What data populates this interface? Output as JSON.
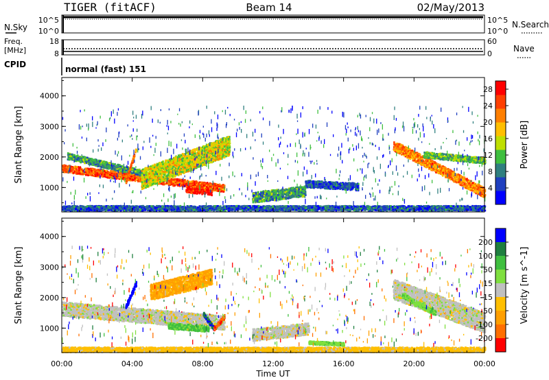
{
  "header": {
    "radar": "TIGER (fitACF)",
    "beam": "Beam 14",
    "date": "02/May/2013"
  },
  "top_panels": {
    "nsky_label": "N.Sky",
    "nsky_ticks": [
      "10^5",
      "10^0"
    ],
    "nsearch_label": "N.Search",
    "nsearch_ticks": [
      "10^5",
      "10^0"
    ],
    "freq_label": "Freq.",
    "freq_unit": "[MHz]",
    "freq_ticks": [
      "18",
      "8"
    ],
    "nave_label": "Nave",
    "nave_ticks": [
      "60",
      "0"
    ],
    "cpid_label": "CPID",
    "cpid_value": "normal (fast) 151"
  },
  "colors": {
    "power": [
      "#0000ff",
      "#1f3fbf",
      "#2f7f7f",
      "#3fbf3f",
      "#bfdf00",
      "#ffbf00",
      "#ff7f00",
      "#ff3f00",
      "#ff0000"
    ],
    "velocity": [
      "#0000ff",
      "#1f7f3f",
      "#3fbf3f",
      "#7fdf3f",
      "#c0c0c0",
      "#ffbf00",
      "#ff9f00",
      "#ff6f00",
      "#ff0000"
    ]
  },
  "chart_data": [
    {
      "type": "heatmap",
      "title": "Power",
      "xlabel": "",
      "ylabel": "Slant Range [km]",
      "xlim": [
        0,
        24
      ],
      "ylim": [
        200,
        4600
      ],
      "y_ticks": [
        "1000",
        "2000",
        "3000",
        "4000"
      ],
      "colorbar": {
        "label": "Power [dB]",
        "ticks": [
          "4",
          "8",
          "12",
          "16",
          "20",
          "24",
          "28"
        ],
        "range": [
          0,
          30
        ]
      },
      "echo_bands": [
        {
          "name": "main echo band",
          "t0": 0.0,
          "t1": 9.2,
          "r0": 1650,
          "r1": 1000,
          "width": 180,
          "power": 24
        },
        {
          "name": "upper branch",
          "t0": 0.3,
          "t1": 4.5,
          "r0": 2050,
          "r1": 1500,
          "width": 160,
          "power": 10
        },
        {
          "name": "echo arc 04 UT",
          "t0": 3.6,
          "t1": 4.2,
          "r0": 1200,
          "r1": 2300,
          "width": 80,
          "power": 22
        },
        {
          "name": "fan echoes 05-09 UT",
          "t0": 4.5,
          "t1": 9.5,
          "r0": 1300,
          "r1": 2400,
          "width": 500,
          "power": 16
        },
        {
          "name": "strong echo 07-08 UT",
          "t0": 7.0,
          "t1": 8.5,
          "r0": 950,
          "r1": 850,
          "width": 120,
          "power": 28
        },
        {
          "name": "patch 11-14 UT",
          "t0": 10.8,
          "t1": 13.8,
          "r0": 700,
          "r1": 900,
          "width": 260,
          "power": 10
        },
        {
          "name": "patch 14-17 UT",
          "t0": 13.8,
          "t1": 16.8,
          "r0": 1150,
          "r1": 1050,
          "width": 180,
          "power": 6
        },
        {
          "name": "evening band 19-24 UT",
          "t0": 18.8,
          "t1": 24.0,
          "r0": 2400,
          "r1": 850,
          "width": 250,
          "power": 22
        },
        {
          "name": "evening upper 21-24 UT",
          "t0": 20.5,
          "t1": 24.0,
          "r0": 2100,
          "r1": 1900,
          "width": 150,
          "power": 12
        },
        {
          "name": "ground scatter near range",
          "t0": 0.0,
          "t1": 24.0,
          "r0": 350,
          "r1": 350,
          "width": 120,
          "power": 6
        }
      ]
    },
    {
      "type": "heatmap",
      "title": "Velocity",
      "xlabel": "Time UT",
      "ylabel": "Slant Range [km]",
      "xlim": [
        0,
        24
      ],
      "ylim": [
        200,
        4600
      ],
      "x_ticks": [
        "00:00",
        "04:00",
        "08:00",
        "12:00",
        "16:00",
        "20:00",
        "00:00"
      ],
      "y_ticks": [
        "1000",
        "2000",
        "3000",
        "4000"
      ],
      "colorbar": {
        "label": "Velocity [m s^-1]",
        "ticks": [
          "200",
          "100",
          "50",
          "15",
          "-15",
          "-50",
          "-100",
          "-200"
        ],
        "range": [
          -250,
          250
        ]
      },
      "echo_bands": [
        {
          "name": "main echo band",
          "t0": 0.0,
          "t1": 9.2,
          "r0": 1650,
          "r1": 1200,
          "width": 350,
          "velocity": 0
        },
        {
          "name": "blue arc 04 UT",
          "t0": 3.6,
          "t1": 4.2,
          "r0": 1700,
          "r1": 2500,
          "width": 120,
          "velocity": 220
        },
        {
          "name": "orange fan 05-08 UT",
          "t0": 5.0,
          "t1": 8.5,
          "r0": 2200,
          "r1": 2700,
          "width": 400,
          "velocity": -60
        },
        {
          "name": "green patch 06-08 UT",
          "t0": 6.0,
          "t1": 8.3,
          "r0": 1100,
          "r1": 1000,
          "width": 150,
          "velocity": 60
        },
        {
          "name": "blue streak 08 UT",
          "t0": 8.0,
          "t1": 8.6,
          "r0": 1500,
          "r1": 1000,
          "width": 100,
          "velocity": 200
        },
        {
          "name": "red streak 09 UT",
          "t0": 8.6,
          "t1": 9.2,
          "r0": 1000,
          "r1": 1400,
          "width": 100,
          "velocity": -200
        },
        {
          "name": "patch 11-14 UT",
          "t0": 10.8,
          "t1": 14.0,
          "r0": 800,
          "r1": 1000,
          "width": 300,
          "velocity": 0
        },
        {
          "name": "green patch 14-16 UT",
          "t0": 14.0,
          "t1": 16.0,
          "r0": 550,
          "r1": 500,
          "width": 80,
          "velocity": 40
        },
        {
          "name": "evening band 19-24 UT",
          "t0": 18.8,
          "t1": 24.0,
          "r0": 2300,
          "r1": 1200,
          "width": 500,
          "velocity": 0
        },
        {
          "name": "green stripe 19-21 UT",
          "t0": 19.3,
          "t1": 21.2,
          "r0": 2100,
          "r1": 1500,
          "width": 120,
          "velocity": 40
        },
        {
          "name": "ground scatter near range",
          "t0": 0.0,
          "t1": 24.0,
          "r0": 320,
          "r1": 320,
          "width": 120,
          "velocity": -30
        }
      ]
    }
  ]
}
